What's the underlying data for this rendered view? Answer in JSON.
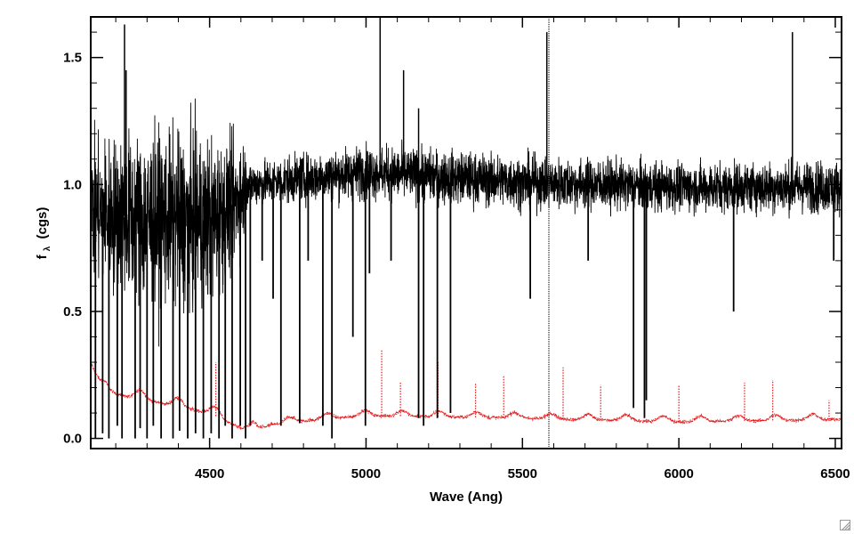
{
  "chart_data": {
    "type": "line",
    "title": "",
    "xlabel": "Wave (Ang)",
    "ylabel": "f (cgs)",
    "ylabel_main": "f",
    "ylabel_subscript": "λ",
    "ylabel_unit": "(cgs)",
    "xlim": [
      4120,
      6520
    ],
    "ylim": [
      -0.04,
      1.66
    ],
    "xticks": [
      4500,
      5000,
      5500,
      6000,
      6500
    ],
    "xtick_labels": [
      "4500",
      "5000",
      "5500",
      "6000",
      "6500"
    ],
    "yticks": [
      0.0,
      0.5,
      1.0,
      1.5
    ],
    "ytick_labels": [
      "0.0",
      "0.5",
      "1.0",
      "1.5"
    ],
    "grid": false,
    "series": [
      {
        "color": "#000000",
        "style": "solid",
        "continuum": [
          [
            4120,
            0.9
          ],
          [
            4300,
            0.86
          ],
          [
            4500,
            0.86
          ],
          [
            4560,
            0.9
          ],
          [
            4620,
            1.0
          ],
          [
            5000,
            1.05
          ],
          [
            5500,
            1.01
          ],
          [
            6000,
            0.99
          ],
          [
            6520,
            0.99
          ]
        ],
        "absorption_lines": [
          [
            4135,
            0.0
          ],
          [
            4158,
            0.02
          ],
          [
            4178,
            0.0
          ],
          [
            4205,
            0.05
          ],
          [
            4220,
            0.0
          ],
          [
            4262,
            0.0
          ],
          [
            4278,
            0.04
          ],
          [
            4300,
            0.0
          ],
          [
            4320,
            0.05
          ],
          [
            4345,
            0.0
          ],
          [
            4383,
            0.0
          ],
          [
            4404,
            0.03
          ],
          [
            4430,
            0.0
          ],
          [
            4455,
            0.02
          ],
          [
            4480,
            0.0
          ],
          [
            4505,
            0.02
          ],
          [
            4530,
            0.0
          ],
          [
            4550,
            0.05
          ],
          [
            4572,
            0.0
          ],
          [
            4598,
            0.05
          ],
          [
            4615,
            0.0
          ],
          [
            4630,
            0.05
          ],
          [
            4668,
            0.7
          ],
          [
            4703,
            0.55
          ],
          [
            4728,
            0.05
          ],
          [
            4788,
            0.06
          ],
          [
            4815,
            0.7
          ],
          [
            4862,
            0.05
          ],
          [
            4891,
            0.0
          ],
          [
            4958,
            0.4
          ],
          [
            4998,
            0.05
          ],
          [
            5011,
            0.65
          ],
          [
            5080,
            0.7
          ],
          [
            5168,
            0.08
          ],
          [
            5184,
            0.05
          ],
          [
            5228,
            0.08
          ],
          [
            5270,
            0.1
          ],
          [
            5525,
            0.55
          ],
          [
            5710,
            0.7
          ],
          [
            5855,
            0.12
          ],
          [
            5890,
            0.08
          ],
          [
            5896,
            0.15
          ],
          [
            6175,
            0.5
          ],
          [
            6495,
            0.7
          ]
        ],
        "emission_spikes": [
          [
            4228,
            1.63
          ],
          [
            4233,
            1.45
          ],
          [
            5045,
            1.66
          ],
          [
            5120,
            1.45
          ],
          [
            5168,
            1.3
          ],
          [
            5578,
            1.6
          ],
          [
            6363,
            1.6
          ]
        ],
        "noise_sigma": [
          [
            4120,
            0.16
          ],
          [
            4300,
            0.2
          ],
          [
            4500,
            0.19
          ],
          [
            4610,
            0.12
          ],
          [
            4620,
            0.05
          ],
          [
            5000,
            0.06
          ],
          [
            5500,
            0.06
          ],
          [
            6000,
            0.055
          ],
          [
            6520,
            0.06
          ]
        ]
      },
      {
        "color": "#e41a1c",
        "style": "dotted",
        "continuum": [
          [
            4120,
            0.3
          ],
          [
            4150,
            0.2
          ],
          [
            4200,
            0.175
          ],
          [
            4300,
            0.15
          ],
          [
            4400,
            0.125
          ],
          [
            4500,
            0.1
          ],
          [
            4600,
            0.04
          ],
          [
            4630,
            0.025
          ],
          [
            4700,
            0.055
          ],
          [
            4850,
            0.075
          ],
          [
            5000,
            0.09
          ],
          [
            5500,
            0.08
          ],
          [
            6000,
            0.065
          ],
          [
            6520,
            0.075
          ]
        ],
        "spikes": [
          [
            4520,
            0.3
          ],
          [
            5050,
            0.35
          ],
          [
            5110,
            0.22
          ],
          [
            5230,
            0.3
          ],
          [
            5350,
            0.22
          ],
          [
            5440,
            0.25
          ],
          [
            5630,
            0.28
          ],
          [
            5750,
            0.21
          ],
          [
            6000,
            0.21
          ],
          [
            6210,
            0.22
          ],
          [
            6300,
            0.23
          ],
          [
            6480,
            0.15
          ]
        ]
      }
    ]
  }
}
